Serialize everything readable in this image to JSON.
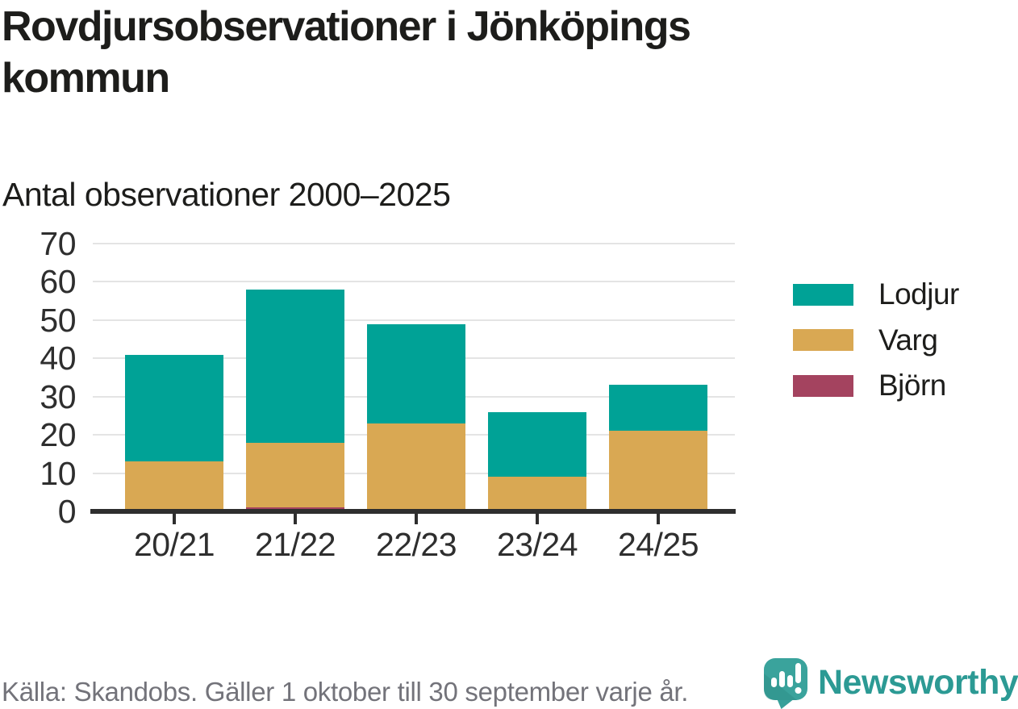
{
  "header": {
    "title": "Rovdjursobservationer i Jönköpings kommun",
    "subtitle": "Antal observationer 2000–2025"
  },
  "chart_data": {
    "type": "bar",
    "stacked": true,
    "title": "Rovdjursobservationer i Jönköpings kommun",
    "subtitle": "Antal observationer 2000–2025",
    "categories": [
      "20/21",
      "21/22",
      "22/23",
      "23/24",
      "24/25"
    ],
    "series": [
      {
        "name": "Björn",
        "color": "#a4435f",
        "values": [
          0,
          1,
          0,
          0,
          0
        ]
      },
      {
        "name": "Varg",
        "color": "#d9a853",
        "values": [
          13,
          17,
          23,
          9,
          21
        ]
      },
      {
        "name": "Lodjur",
        "color": "#00a296",
        "values": [
          28,
          40,
          26,
          17,
          12
        ]
      }
    ],
    "totals": [
      41,
      58,
      49,
      26,
      33
    ],
    "xlabel": "",
    "ylabel": "",
    "ylim": [
      0,
      70
    ],
    "yticks": [
      0,
      10,
      20,
      30,
      40,
      50,
      60,
      70
    ],
    "grid": "horizontal",
    "legend_position": "right"
  },
  "legend": {
    "items": [
      {
        "label": "Lodjur",
        "color": "#00a296"
      },
      {
        "label": "Varg",
        "color": "#d9a853"
      },
      {
        "label": "Björn",
        "color": "#a4435f"
      }
    ]
  },
  "footer": {
    "source": "Källa: Skandobs. Gäller 1 oktober till 30 september varje år.",
    "brand": "Newsworthy"
  },
  "colors": {
    "lodjur": "#00a296",
    "varg": "#d9a853",
    "bjorn": "#a4435f",
    "axis": "#2e2e2e",
    "gridline": "#e4e4e4",
    "text": "#1d1d1b",
    "source_text": "#73737a",
    "brand_teal": "#2c9a94"
  }
}
